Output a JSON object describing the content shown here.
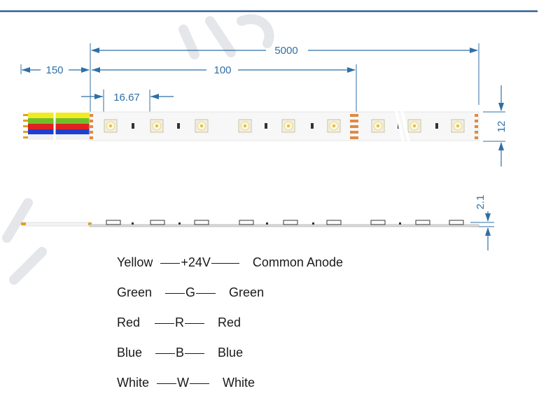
{
  "header": {
    "rule_color": "#2f5f95"
  },
  "dimensions": {
    "total_length": "5000",
    "lead_length": "150",
    "cut_unit": "100",
    "led_pitch": "16.67",
    "strip_width": "12",
    "strip_thickness": "2.1",
    "dim_color": "#2f6fa6"
  },
  "strip": {
    "wire_colors": [
      "#f2ea1e",
      "#6fbf2c",
      "#e02121",
      "#1f3fd0",
      "#ffffff"
    ],
    "led_count": 8,
    "side_view_pads": 8
  },
  "wiring": [
    {
      "color": "Yellow",
      "signal": "+24V",
      "function": "Common Anode"
    },
    {
      "color": "Green",
      "signal": "G",
      "function": "Green"
    },
    {
      "color": "Red",
      "signal": "R",
      "function": "Red"
    },
    {
      "color": "Blue",
      "signal": "B",
      "function": "Blue"
    },
    {
      "color": "White",
      "signal": "W",
      "function": "White"
    }
  ]
}
